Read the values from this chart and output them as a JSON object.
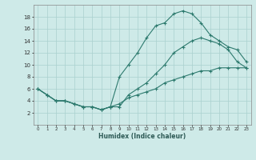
{
  "xlabel": "Humidex (Indice chaleur)",
  "curve1_x": [
    0,
    1,
    2,
    3,
    4,
    5,
    6,
    7,
    8,
    9,
    10,
    11,
    12,
    13,
    14,
    15,
    16,
    17,
    18,
    19,
    20,
    21,
    22,
    23
  ],
  "curve1_y": [
    6,
    5,
    4,
    4,
    3.5,
    3,
    3,
    2.5,
    3,
    8,
    10,
    12,
    14.5,
    16.5,
    17,
    18.5,
    19,
    18.5,
    17,
    15,
    14,
    13,
    12.5,
    10.5
  ],
  "curve2_x": [
    0,
    1,
    2,
    3,
    4,
    5,
    6,
    7,
    8,
    9,
    10,
    11,
    12,
    13,
    14,
    15,
    16,
    17,
    18,
    19,
    20,
    21,
    22,
    23
  ],
  "curve2_y": [
    6,
    5,
    4,
    4,
    3.5,
    3,
    3,
    2.5,
    3,
    3,
    5,
    6,
    7,
    8.5,
    10,
    12,
    13,
    14,
    14.5,
    14,
    13.5,
    12.5,
    10.5,
    9.5
  ],
  "curve3_x": [
    0,
    1,
    2,
    3,
    4,
    5,
    6,
    7,
    8,
    9,
    10,
    11,
    12,
    13,
    14,
    15,
    16,
    17,
    18,
    19,
    20,
    21,
    22,
    23
  ],
  "curve3_y": [
    6,
    5,
    4,
    4,
    3.5,
    3,
    3,
    2.5,
    3,
    3.5,
    4.5,
    5,
    5.5,
    6,
    7,
    7.5,
    8,
    8.5,
    9,
    9,
    9.5,
    9.5,
    9.5,
    9.5
  ],
  "color": "#2d7a6e",
  "bg_color": "#ceeae8",
  "grid_color": "#aad0ce",
  "ylim": [
    0,
    20
  ],
  "xlim": [
    -0.5,
    23.5
  ],
  "yticks": [
    2,
    4,
    6,
    8,
    10,
    12,
    14,
    16,
    18
  ],
  "xticks": [
    0,
    1,
    2,
    3,
    4,
    5,
    6,
    7,
    8,
    9,
    10,
    11,
    12,
    13,
    14,
    15,
    16,
    17,
    18,
    19,
    20,
    21,
    22,
    23
  ]
}
